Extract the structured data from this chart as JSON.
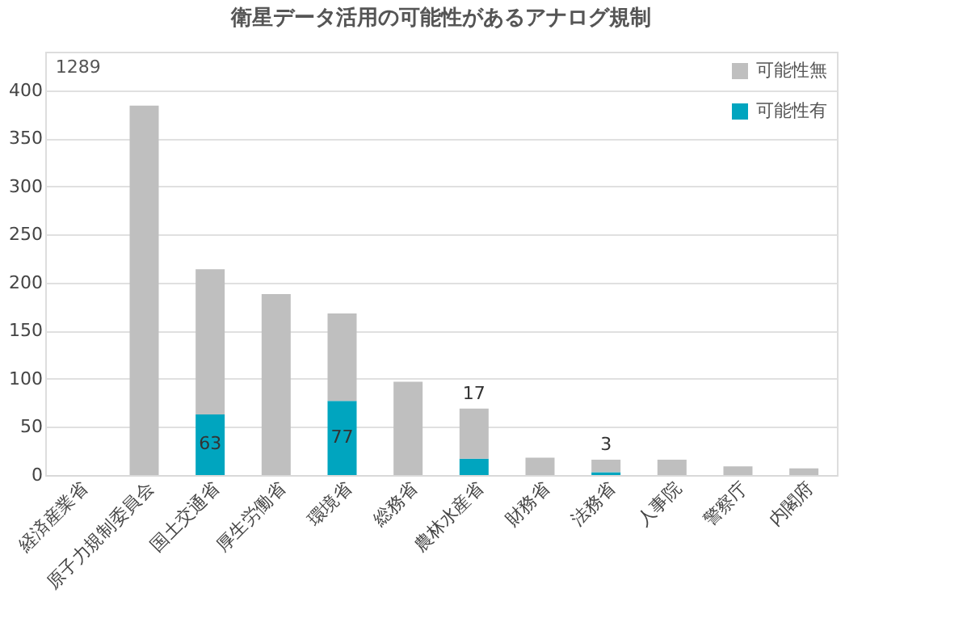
{
  "chart_data": {
    "type": "bar",
    "title": "衛星データ活用の可能性があるアナログ規制",
    "stacked": true,
    "categories": [
      "経済産業省",
      "原子力規制委員会",
      "国土交通省",
      "厚生労働省",
      "環境省",
      "総務省",
      "農林水産省",
      "財務省",
      "法務省",
      "人事院",
      "警察庁",
      "内閣府"
    ],
    "series": [
      {
        "name": "可能性有",
        "color": "#00a5bf",
        "values": [
          null,
          null,
          63,
          null,
          77,
          null,
          17,
          null,
          3,
          null,
          null,
          null
        ],
        "value_labels": [
          null,
          null,
          "63",
          null,
          "77",
          null,
          "17",
          null,
          "3",
          null,
          null,
          null
        ]
      },
      {
        "name": "可能性無",
        "color": "#bfbfbf",
        "values": [
          null,
          384,
          151,
          188,
          91,
          97,
          52,
          18,
          13,
          16,
          9,
          7
        ]
      }
    ],
    "annotations": [
      "1289"
    ],
    "ylim": [
      0,
      440
    ],
    "yticks": [
      0,
      50,
      100,
      150,
      200,
      250,
      300,
      350,
      400
    ],
    "grid": "y",
    "legend": "top right"
  }
}
